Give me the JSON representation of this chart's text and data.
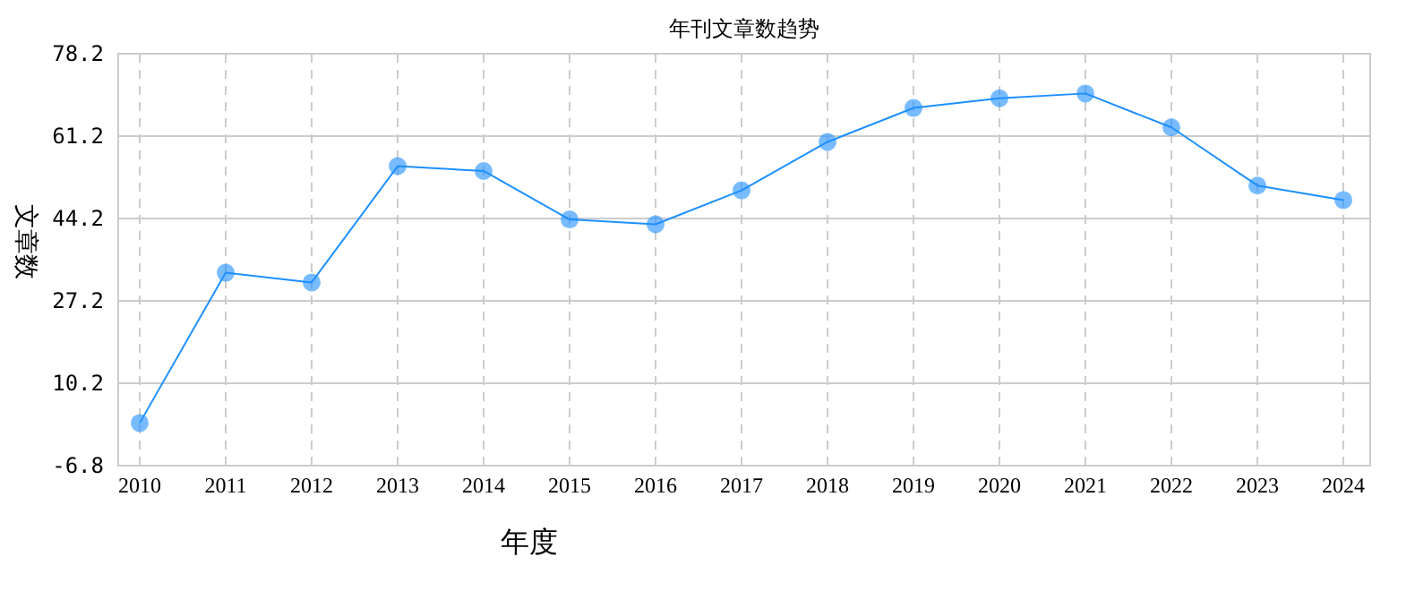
{
  "chart_data": {
    "type": "line",
    "title": "年刊文章数趋势",
    "xlabel": "年度",
    "ylabel": "文章数",
    "categories": [
      "2010",
      "2011",
      "2012",
      "2013",
      "2014",
      "2015",
      "2016",
      "2017",
      "2018",
      "2019",
      "2020",
      "2021",
      "2022",
      "2023",
      "2024"
    ],
    "series": [
      {
        "color": "#1e90ff",
        "values": [
          2,
          33,
          31,
          55,
          54,
          44,
          43,
          50,
          60,
          67,
          69,
          70,
          63,
          51,
          48
        ]
      }
    ],
    "ylim": [
      -6.8,
      78.2
    ],
    "yticks": [
      -6.8,
      10.2,
      27.2,
      44.2,
      61.2,
      78.2
    ],
    "grid": true,
    "marker": "circle",
    "line_style": "solid"
  }
}
